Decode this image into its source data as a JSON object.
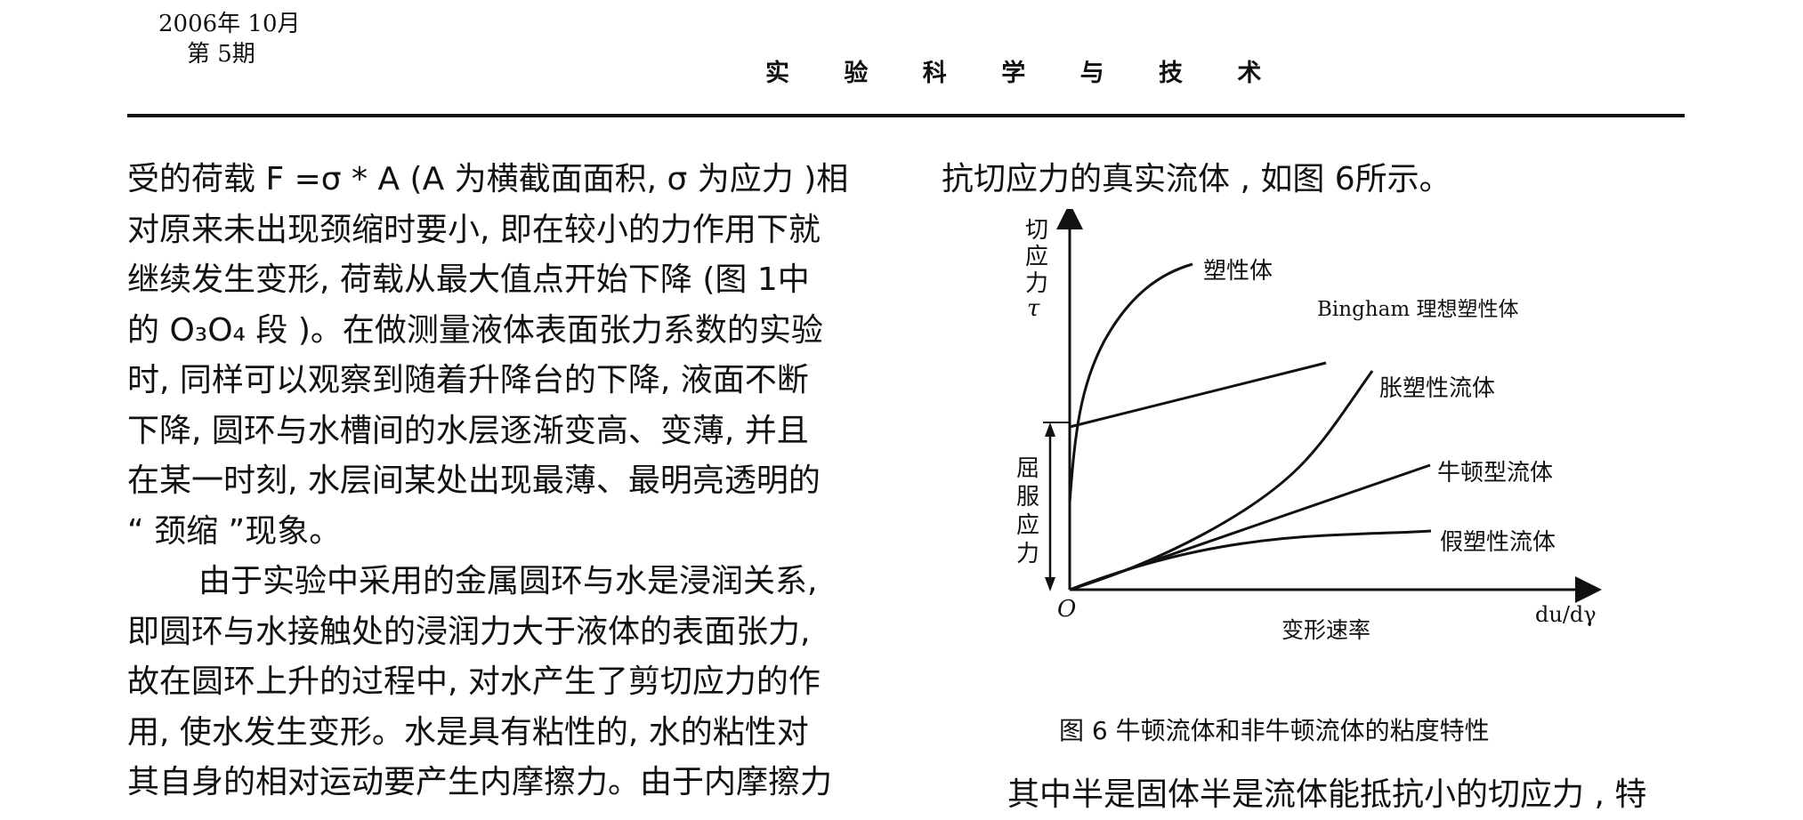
{
  "header": {
    "date_line1": "2006年 10月",
    "date_line2": "第 5期",
    "journal": "实 验 科 学 与 技 术"
  },
  "left_column": {
    "lines": [
      "受的荷载 F =σ * A (A 为横截面面积, σ 为应力 )相",
      "对原来未出现颈缩时要小, 即在较小的力作用下就",
      "继续发生变形, 荷载从最大值点开始下降 (图 1中",
      "的 O₃O₄ 段 )。在做测量液体表面张力系数的实验",
      "时, 同样可以观察到随着升降台的下降, 液面不断",
      "下降, 圆环与水槽间的水层逐渐变高、变薄, 并且",
      "在某一时刻, 水层间某处出现最薄、最明亮透明的",
      "“ 颈缩 ”现象。",
      "由于实验中采用的金属圆环与水是浸润关系,",
      "即圆环与水接触处的浸润力大于液体的表面张力,",
      "故在圆环上升的过程中, 对水产生了剪切应力的作",
      "用, 使水发生变形。水是具有粘性的, 水的粘性对",
      "其自身的相对运动要产生内摩擦力。由于内摩擦力"
    ]
  },
  "right_column": {
    "top_line": "抗切应力的真实流体 , 如图 6所示。",
    "bottom_line": "其中半是固体半是流体能抵抗小的切应力 , 特"
  },
  "figure": {
    "caption": "图 6   牛顿流体和非牛顿流体的粘度特性",
    "y_axis_label": [
      "切",
      "应",
      "力",
      "τ"
    ],
    "yield_label": [
      "屈",
      "服",
      "应",
      "力"
    ],
    "origin": "O",
    "x_axis_label": "变形速率",
    "x_axis_unit": "du/dγ",
    "curves": {
      "plastic": "塑性体",
      "bingham": "Bingham 理想塑性体",
      "dilatant": "胀塑性流体",
      "newtonian": "牛顿型流体",
      "pseudoplastic": "假塑性流体"
    }
  },
  "chart_data": {
    "type": "line",
    "title": "图 6   牛顿流体和非牛顿流体的粘度特性",
    "xlabel": "变形速率",
    "ylabel": "切应力 τ",
    "series": [
      {
        "name": "塑性体",
        "x": [
          0,
          0.02,
          0.05,
          0.1,
          0.2,
          0.3,
          0.45
        ],
        "y": [
          0.45,
          0.55,
          0.68,
          0.78,
          0.9,
          0.97,
          1.0
        ]
      },
      {
        "name": "Bingham 理想塑性体",
        "x": [
          0,
          0.95
        ],
        "y": [
          0.45,
          0.72
        ]
      },
      {
        "name": "胀塑性流体",
        "x": [
          0,
          0.2,
          0.4,
          0.6,
          0.75,
          0.85
        ],
        "y": [
          0,
          0.06,
          0.14,
          0.27,
          0.4,
          0.52
        ]
      },
      {
        "name": "牛顿型流体",
        "x": [
          0,
          1.0
        ],
        "y": [
          0,
          0.34
        ]
      },
      {
        "name": "假塑性流体",
        "x": [
          0,
          0.2,
          0.4,
          0.6,
          0.8,
          1.0
        ],
        "y": [
          0,
          0.08,
          0.13,
          0.15,
          0.16,
          0.17
        ]
      }
    ]
  }
}
